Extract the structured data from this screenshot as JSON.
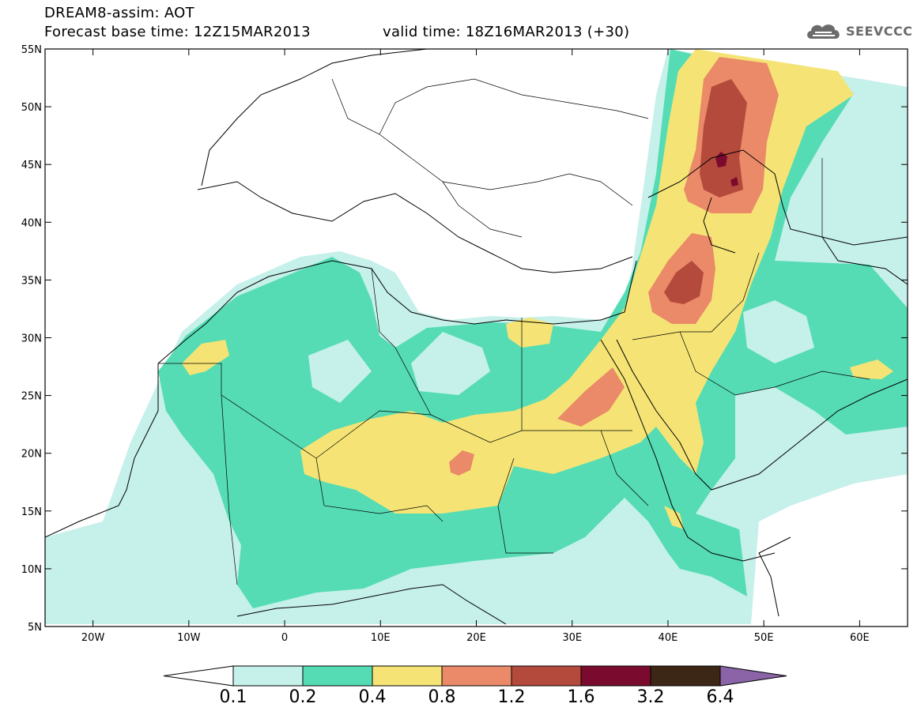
{
  "title": {
    "line1": "DREAM8-assim: AOT",
    "base_time": "Forecast base time: 12Z15MAR2013",
    "valid_time": "valid time: 18Z16MAR2013 (+30)"
  },
  "logo": {
    "text": "SEEVCCC",
    "icon": "cloud-icon"
  },
  "axes": {
    "lat_ticks": [
      "55N",
      "50N",
      "45N",
      "40N",
      "35N",
      "30N",
      "25N",
      "20N",
      "15N",
      "10N",
      "5N"
    ],
    "lon_ticks": [
      "20W",
      "10W",
      "0",
      "10E",
      "20E",
      "30E",
      "40E",
      "50E",
      "60E"
    ],
    "lon_range": [
      -25,
      65
    ],
    "lat_range": [
      5,
      55
    ]
  },
  "colorbar": {
    "colors": [
      "#ffffff",
      "#c6f0ea",
      "#55dcb4",
      "#f5e475",
      "#ea8a68",
      "#b34a3c",
      "#7a0a2e",
      "#3c2616",
      "#8a64a6"
    ],
    "labels": [
      "0.1",
      "0.2",
      "0.4",
      "0.8",
      "1.2",
      "1.6",
      "3.2",
      "6.4"
    ]
  }
}
